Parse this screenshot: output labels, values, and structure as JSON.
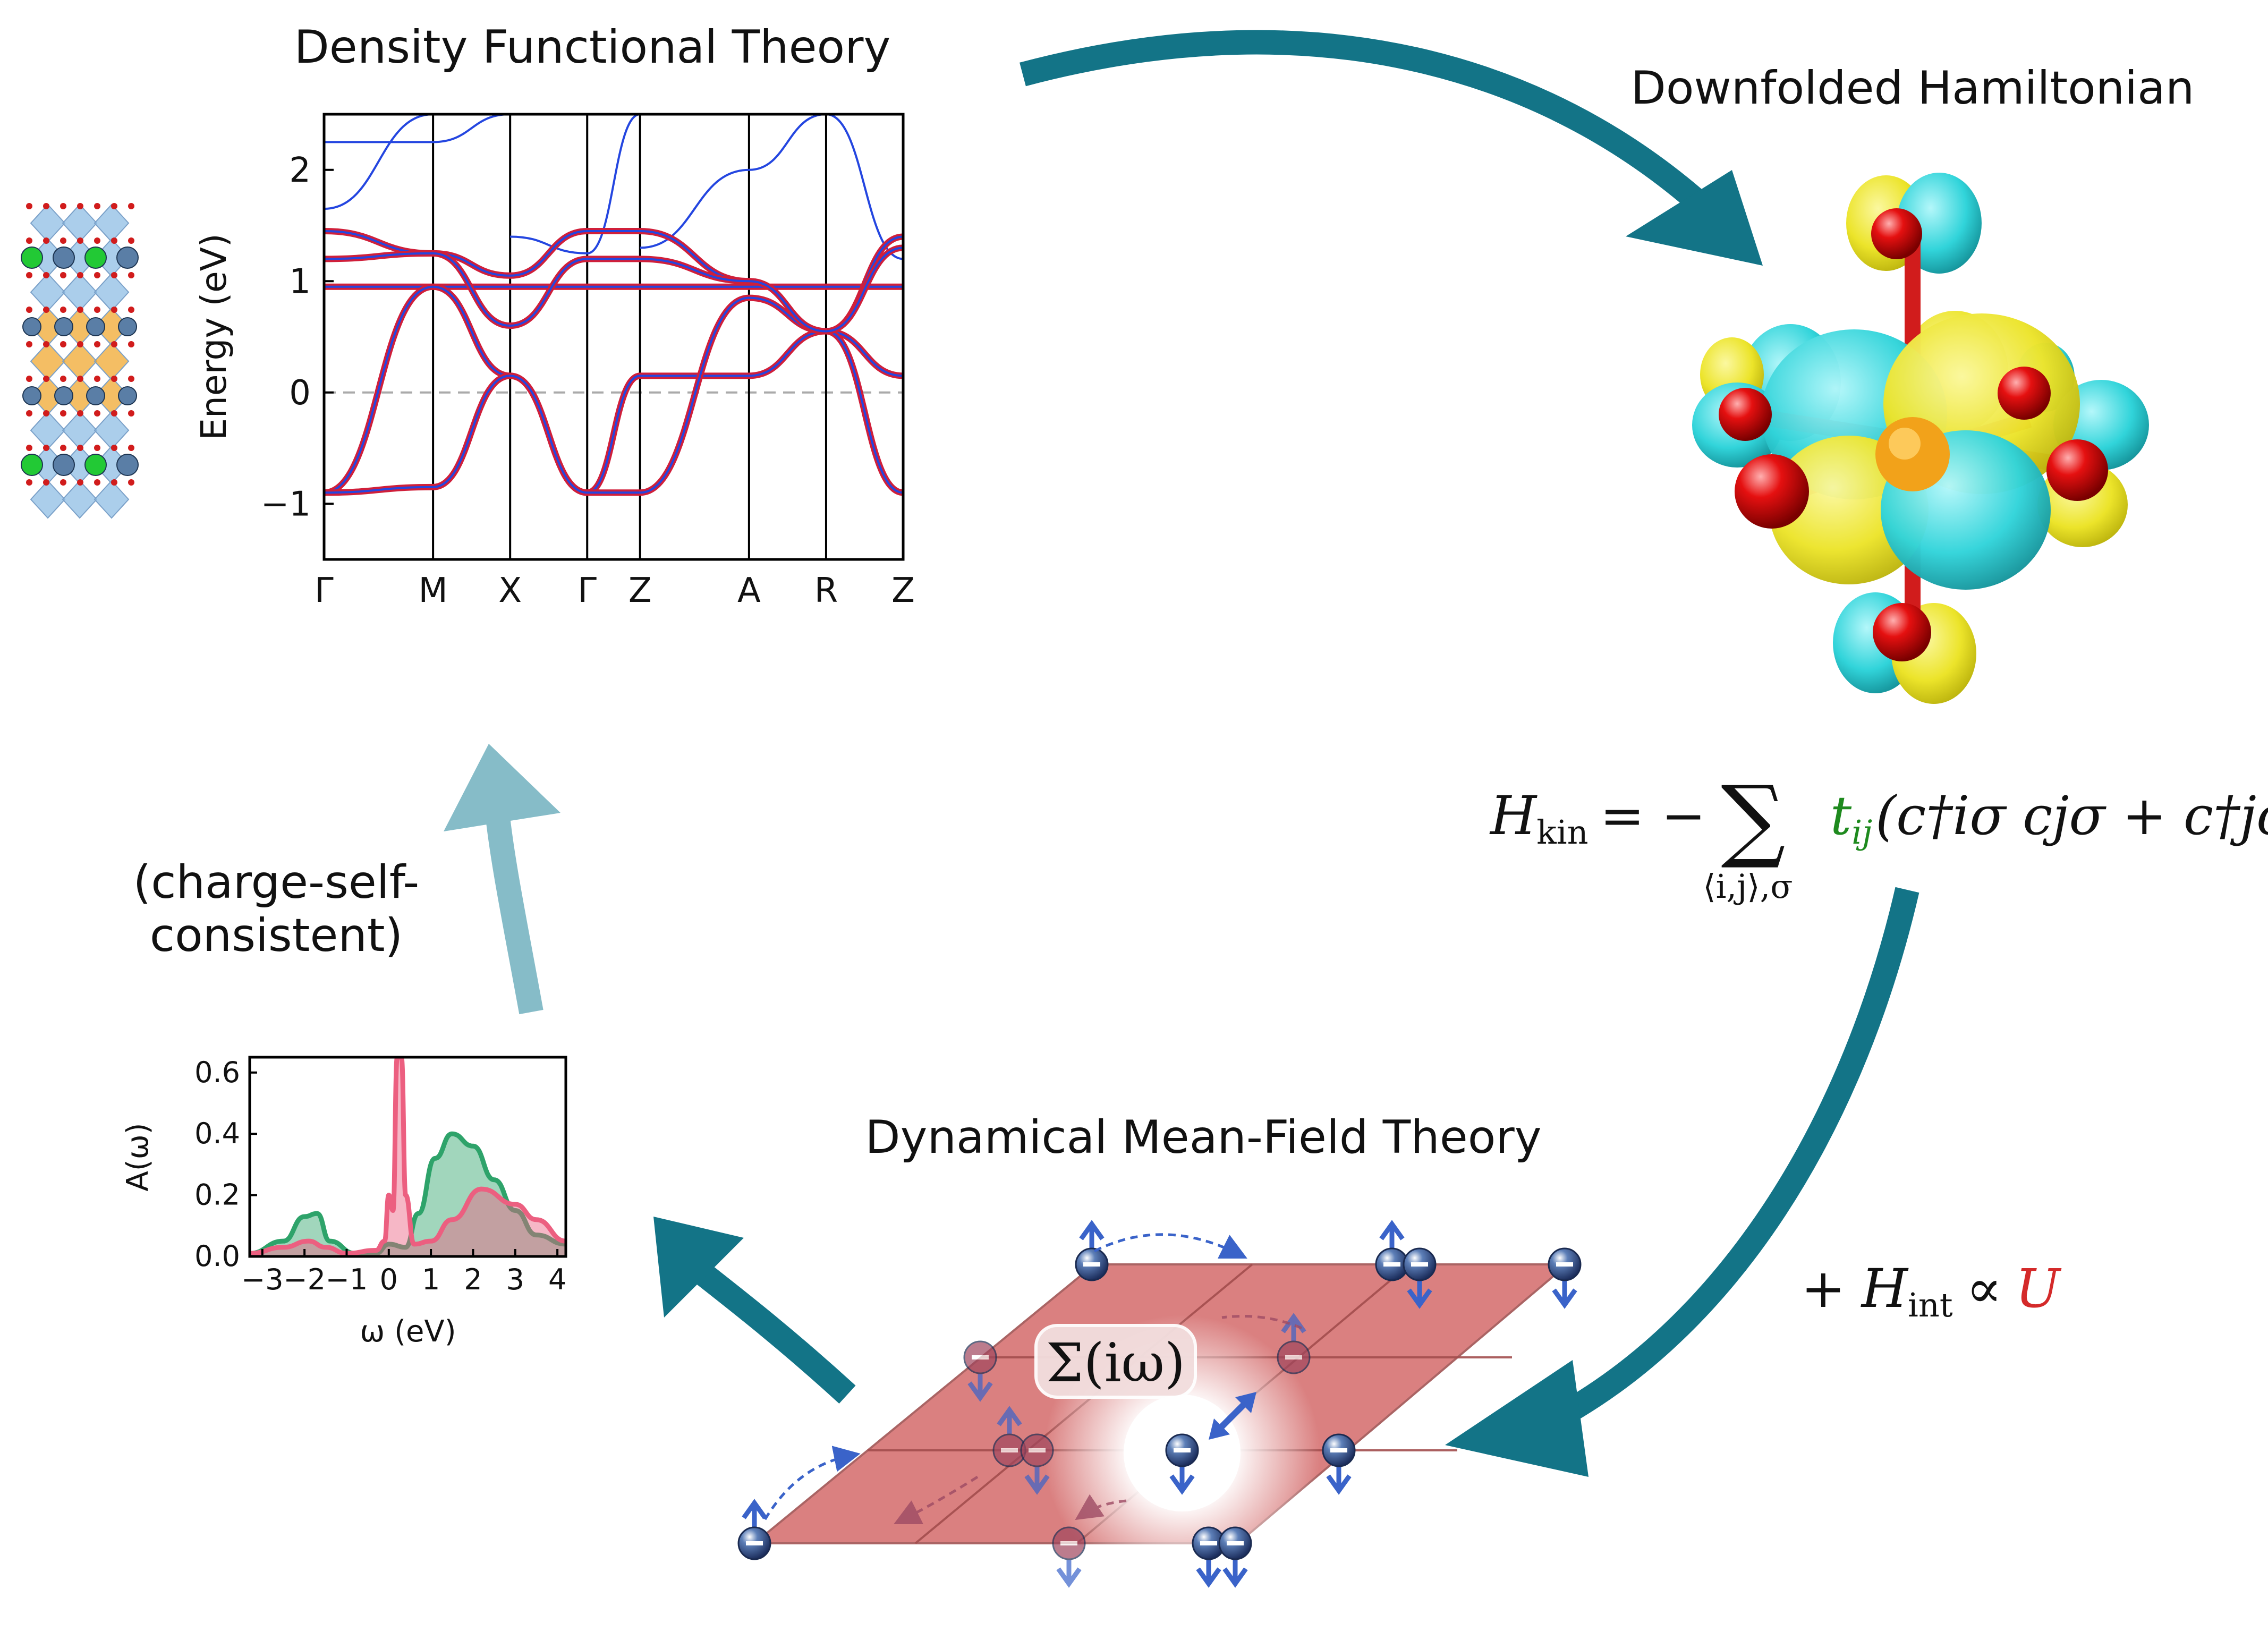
{
  "titles": {
    "dft": "Density Functional Theory",
    "downfolded": "Downfolded Hamiltonian",
    "dmft": "Dynamical Mean-Field Theory"
  },
  "cycle_note": {
    "line1": "(charge-self-",
    "line2": "consistent)"
  },
  "hamiltonian": {
    "lhs": "H",
    "lhs_sub": "kin",
    "eq": "= −",
    "sum": "∑",
    "sum_sub": "⟨i,j⟩,σ",
    "hop": "t",
    "hop_sub": "ij",
    "term": "(c†iσ cjσ + c†jσ ciσ)",
    "hop_color": "#1e8a1e"
  },
  "interaction": {
    "plus": "+",
    "h": "H",
    "h_sub": "int",
    "prop": "∝",
    "u": "U",
    "u_color": "#d42a2a"
  },
  "self_energy": {
    "text": "Σ(iω)",
    "color": "#3a63c9"
  },
  "colors": {
    "arrow_dark": "#137487",
    "arrow_light": "#86bcc8",
    "band_blue": "#2446e0",
    "band_red": "#d01f3a",
    "dos_pink": "#ec5f80",
    "dos_green": "#2ea36a",
    "lattice": "#d46a6a",
    "lobe_yellow": "#efe62a",
    "lobe_cyan": "#35d6dc",
    "oxygen": "#e01010"
  },
  "chart_data": [
    {
      "type": "line",
      "ylabel": "Energy (eV)",
      "ylim": [
        -1.5,
        2.5
      ],
      "yticks": [
        "2",
        "1",
        "0",
        "−1"
      ],
      "ytick_values": [
        2,
        1,
        0,
        -1
      ],
      "kpath": [
        "Γ",
        "M",
        "X",
        "Γ",
        "Z",
        "A",
        "R",
        "Z"
      ],
      "kpath_positions": [
        0,
        0.707,
        1.207,
        1.707,
        2.05,
        2.757,
        3.257,
        3.757
      ],
      "fermi_level": 0,
      "series": [
        {
          "values": [
            [
              0,
              0.95
            ],
            [
              0.707,
              0.95
            ],
            [
              1.207,
              0.95
            ],
            [
              1.707,
              0.95
            ],
            [
              2.05,
              0.95
            ],
            [
              2.757,
              0.95
            ],
            [
              3.257,
              0.95
            ],
            [
              3.757,
              0.95
            ]
          ]
        },
        {
          "values": [
            [
              0,
              -0.9
            ],
            [
              0.707,
              0.95
            ],
            [
              1.207,
              0.15
            ],
            [
              1.707,
              -0.9
            ],
            [
              2.05,
              0.15
            ],
            [
              2.757,
              0.15
            ],
            [
              3.257,
              0.55
            ],
            [
              3.757,
              0.15
            ]
          ]
        },
        {
          "values": [
            [
              0,
              1.45
            ],
            [
              0.707,
              1.25
            ],
            [
              1.207,
              1.05
            ],
            [
              1.707,
              1.45
            ],
            [
              2.05,
              1.45
            ],
            [
              2.757,
              1.0
            ],
            [
              3.257,
              0.55
            ],
            [
              3.757,
              1.4
            ]
          ]
        },
        {
          "values": [
            [
              0,
              -0.9
            ],
            [
              0.707,
              -0.85
            ],
            [
              1.207,
              0.15
            ],
            [
              1.707,
              -0.9
            ],
            [
              2.05,
              -0.9
            ],
            [
              2.757,
              0.85
            ],
            [
              3.257,
              0.55
            ],
            [
              3.757,
              -0.9
            ]
          ]
        },
        {
          "values": [
            [
              0,
              1.2
            ],
            [
              0.707,
              1.25
            ],
            [
              1.207,
              0.6
            ],
            [
              1.707,
              1.2
            ],
            [
              2.05,
              1.2
            ],
            [
              2.757,
              1.0
            ],
            [
              3.257,
              0.55
            ],
            [
              3.757,
              1.3
            ]
          ]
        }
      ],
      "upper_bands": [
        {
          "values": [
            [
              0,
              2.25
            ],
            [
              0.707,
              2.25
            ],
            [
              1.207,
              2.5
            ]
          ]
        },
        {
          "values": [
            [
              0,
              1.65
            ],
            [
              0.707,
              2.5
            ]
          ]
        },
        {
          "values": [
            [
              1.207,
              1.4
            ],
            [
              1.707,
              1.25
            ],
            [
              2.05,
              2.5
            ]
          ]
        },
        {
          "values": [
            [
              2.05,
              1.3
            ],
            [
              2.757,
              2.0
            ],
            [
              3.257,
              2.5
            ]
          ]
        },
        {
          "values": [
            [
              3.257,
              2.5
            ],
            [
              3.757,
              1.2
            ]
          ]
        }
      ]
    },
    {
      "type": "area",
      "ylabel": "A(ω)",
      "xlabel": "ω (eV)",
      "xlim": [
        -3.3,
        4.2
      ],
      "ylim": [
        0,
        0.65
      ],
      "xticks": [
        "−3",
        "−2",
        "−1",
        "0",
        "1",
        "2",
        "3",
        "4"
      ],
      "xtick_values": [
        -3,
        -2,
        -1,
        0,
        1,
        2,
        3,
        4
      ],
      "yticks": [
        "0.0",
        "0.2",
        "0.4",
        "0.6"
      ],
      "ytick_values": [
        0,
        0.2,
        0.4,
        0.6
      ],
      "series": [
        {
          "values": [
            [
              -3.3,
              0.01
            ],
            [
              -2.5,
              0.03
            ],
            [
              -1.9,
              0.05
            ],
            [
              -1.5,
              0.03
            ],
            [
              -1.0,
              0.01
            ],
            [
              -0.3,
              0.02
            ],
            [
              -0.1,
              0.05
            ],
            [
              0.0,
              0.2
            ],
            [
              0.1,
              0.15
            ],
            [
              0.2,
              0.65
            ],
            [
              0.3,
              0.65
            ],
            [
              0.4,
              0.2
            ],
            [
              0.6,
              0.04
            ],
            [
              1.0,
              0.05
            ],
            [
              1.5,
              0.12
            ],
            [
              2.2,
              0.22
            ],
            [
              3.0,
              0.17
            ],
            [
              3.5,
              0.12
            ],
            [
              4.2,
              0.05
            ]
          ]
        },
        {
          "values": [
            [
              -3.3,
              0.01
            ],
            [
              -2.5,
              0.05
            ],
            [
              -2.0,
              0.13
            ],
            [
              -1.7,
              0.14
            ],
            [
              -1.4,
              0.05
            ],
            [
              -0.8,
              0.01
            ],
            [
              -0.3,
              0.01
            ],
            [
              0.0,
              0.04
            ],
            [
              0.4,
              0.03
            ],
            [
              0.7,
              0.14
            ],
            [
              1.1,
              0.32
            ],
            [
              1.5,
              0.4
            ],
            [
              2.0,
              0.36
            ],
            [
              2.5,
              0.25
            ],
            [
              3.0,
              0.15
            ],
            [
              3.5,
              0.07
            ],
            [
              4.2,
              0.04
            ]
          ]
        }
      ]
    }
  ]
}
